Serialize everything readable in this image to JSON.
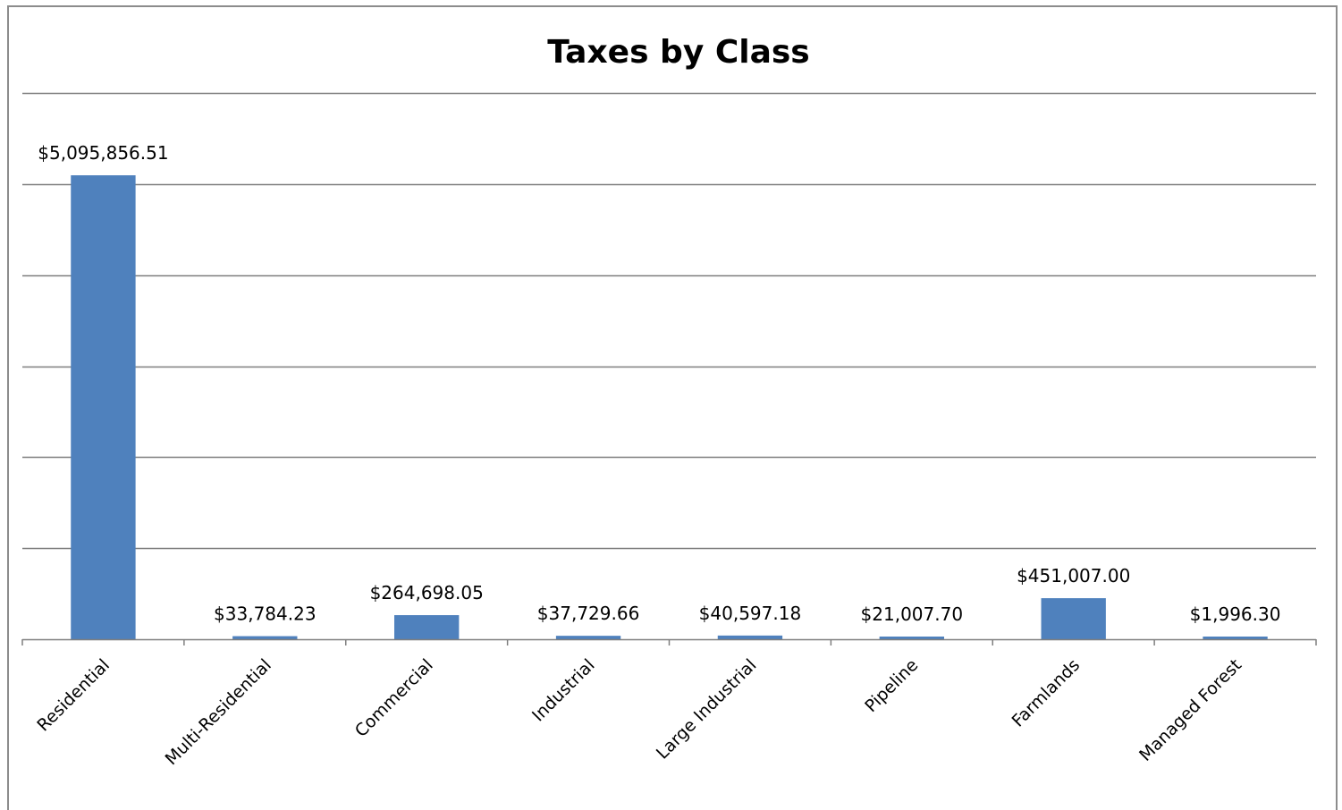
{
  "chart_data": {
    "type": "bar",
    "title": "Taxes by Class",
    "xlabel": "",
    "ylabel": "",
    "categories": [
      "Residential",
      "Multi-Residential",
      "Commercial",
      "Industrial",
      "Large Industrial",
      "Pipeline",
      "Farmlands",
      "Managed Forest"
    ],
    "values": [
      5095856.51,
      33784.23,
      264698.05,
      37729.66,
      40597.18,
      21007.7,
      451007.0,
      1996.3
    ],
    "data_labels": [
      "$5,095,856.51",
      "$33,784.23",
      "$264,698.05",
      "$37,729.66",
      "$40,597.18",
      "$21,007.70",
      "$451,007.00",
      "$1,996.30"
    ],
    "ylim": [
      0,
      6000000
    ],
    "grid": true,
    "legend": "none",
    "colors": {
      "bar": "#4f81bd",
      "grid": "#7f7f7f",
      "axis": "#7f7f7f"
    }
  }
}
